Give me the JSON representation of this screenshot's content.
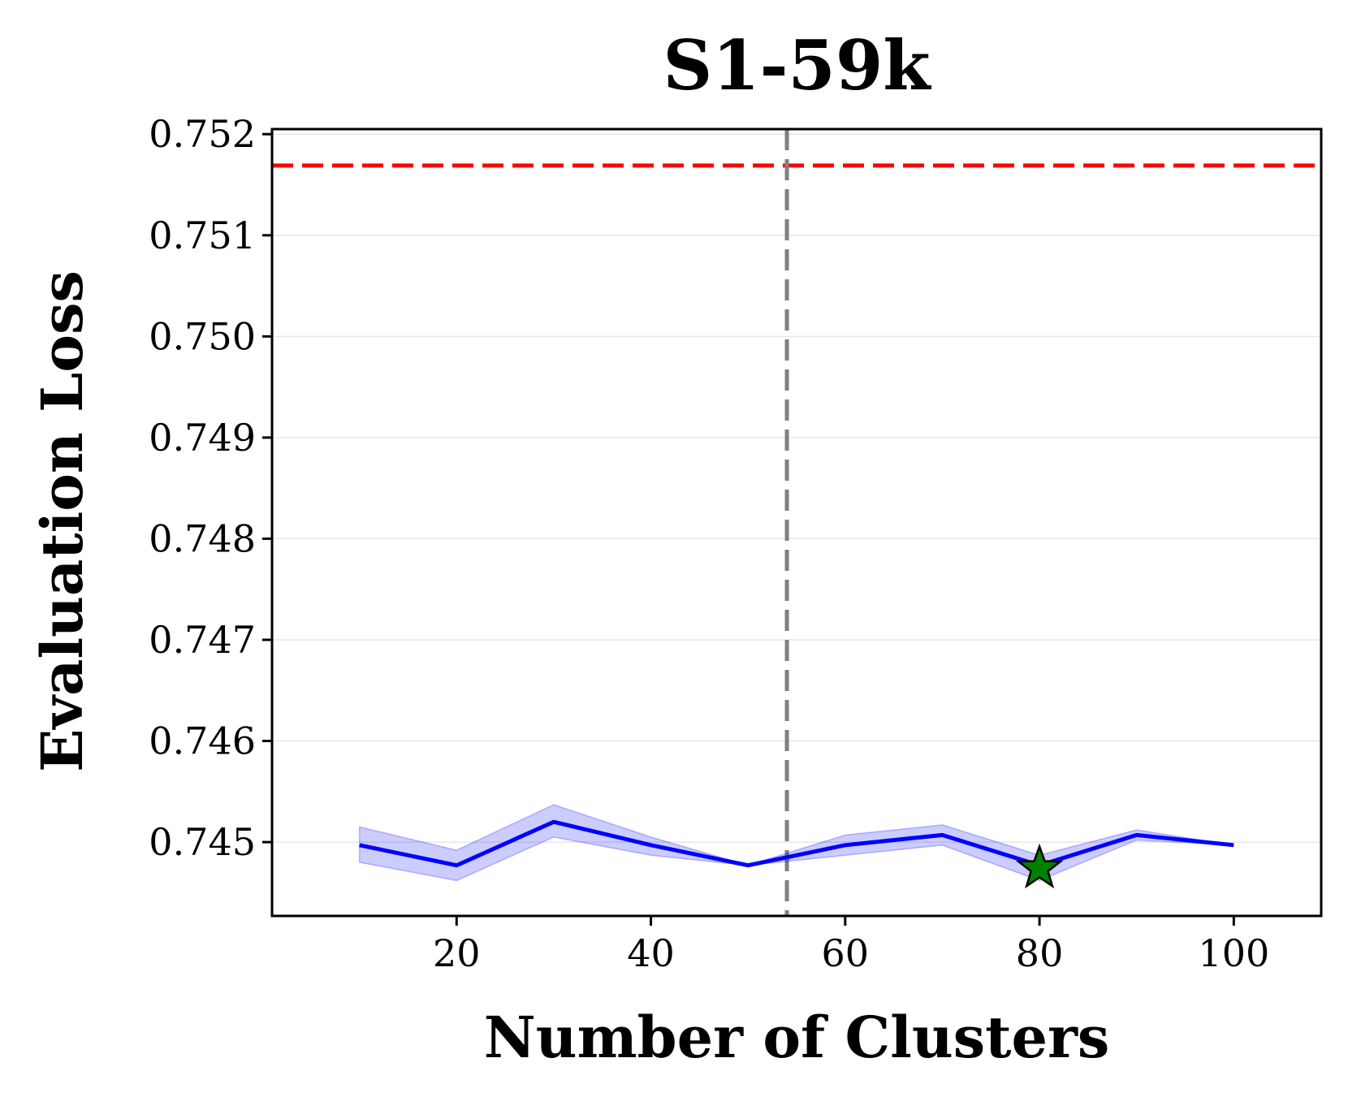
{
  "chart_data": {
    "type": "line",
    "title": "S1-59k",
    "xlabel": "Number of Clusters",
    "ylabel": "Evaluation Loss",
    "xlim": [
      1,
      109
    ],
    "ylim": [
      0.74427,
      0.75205
    ],
    "xticks": [
      20,
      40,
      60,
      80,
      100
    ],
    "xtick_labels": [
      "20",
      "40",
      "60",
      "80",
      "100"
    ],
    "yticks": [
      0.745,
      0.746,
      0.747,
      0.748,
      0.749,
      0.75,
      0.751,
      0.752
    ],
    "ytick_labels": [
      "0.745",
      "0.746",
      "0.747",
      "0.748",
      "0.749",
      "0.750",
      "0.751",
      "0.752"
    ],
    "grid": "horizontal",
    "series": [
      {
        "name": "Evaluation Loss",
        "color": "#0000ff",
        "band_color": "#0000ff",
        "x": [
          10,
          20,
          30,
          40,
          50,
          60,
          70,
          80,
          90,
          100
        ],
        "values": [
          0.74497,
          0.74477,
          0.7452,
          0.74497,
          0.74477,
          0.74497,
          0.74507,
          0.74477,
          0.74507,
          0.74497
        ],
        "lower": [
          0.7448,
          0.74462,
          0.74505,
          0.74487,
          0.74477,
          0.74487,
          0.74497,
          0.74462,
          0.74502,
          0.74497
        ],
        "upper": [
          0.74515,
          0.74492,
          0.74537,
          0.74505,
          0.74477,
          0.74507,
          0.74517,
          0.74487,
          0.74512,
          0.74497
        ]
      }
    ],
    "reference_hline": {
      "y": 0.75169,
      "color": "#ff0000",
      "style": "dashed"
    },
    "reference_vline": {
      "x": 54,
      "color": "#808080",
      "style": "dashed"
    },
    "best_marker": {
      "x": 80,
      "y": 0.74474,
      "shape": "star",
      "color": "#008000"
    }
  }
}
